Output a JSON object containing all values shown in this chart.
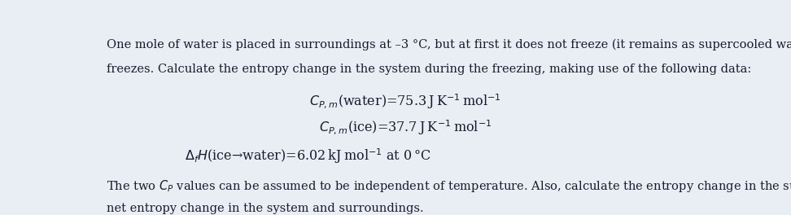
{
  "figsize": [
    9.72,
    2.64
  ],
  "dpi": 100,
  "bg_color": "#e8eef4",
  "text_color": "#1a1a2e",
  "font_size_body": 10.5,
  "font_size_eq": 11.5,
  "line1": "One mole of water is placed in surroundings at –3 °C, but at first it does not freeze (it remains as supercooled water). Suddenly it",
  "line2": "freezes. Calculate the entropy change in the system during the freezing, making use of the following data:",
  "eq1": "$C_{P,m}$(water)=75.3 J K$^{-1}$ mol$^{-1}$",
  "eq2": "$C_{P,m}$(ice)=37.7 J K$^{-1}$ mol$^{-1}$",
  "eq3": "$\\Delta_f H$(ice→water)=6.02 kJ mol$^{-1}$ at 0 °C",
  "line3": "The two $C_P$ values can be assumed to be independent of temperature. Also, calculate the entropy change in the surroundings, and the",
  "line4": "net entropy change in the system and surroundings."
}
